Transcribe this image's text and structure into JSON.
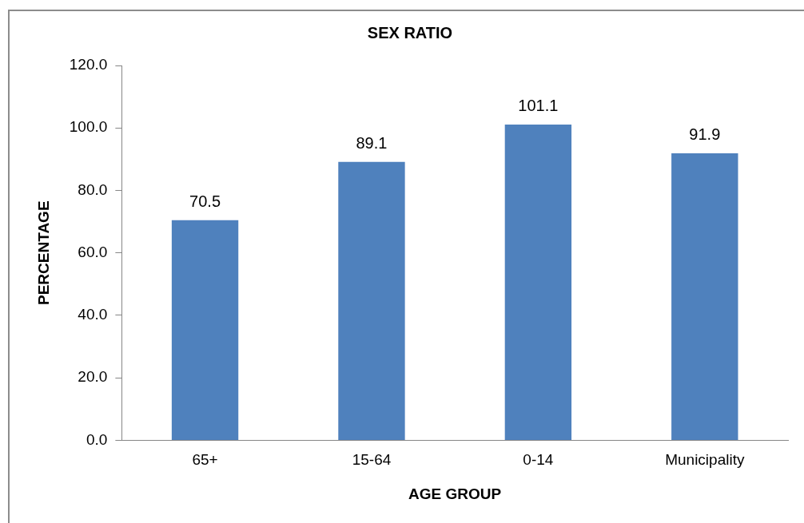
{
  "chart_data": {
    "type": "bar",
    "title": "SEX RATIO",
    "xlabel": "AGE GROUP",
    "ylabel": "PERCENTAGE",
    "categories": [
      "65+",
      "15-64",
      "0-14",
      "Municipality"
    ],
    "values": [
      70.5,
      89.1,
      101.1,
      91.9
    ],
    "color": "#4f81bd",
    "ylim": [
      0,
      120
    ],
    "yticks": [
      {
        "value": 0,
        "label": "0.0"
      },
      {
        "value": 20,
        "label": "20.0"
      },
      {
        "value": 40,
        "label": "40.0"
      },
      {
        "value": 60,
        "label": "60.0"
      },
      {
        "value": 80,
        "label": "80.0"
      },
      {
        "value": 100,
        "label": "100.0"
      },
      {
        "value": 120,
        "label": "120.0"
      }
    ],
    "grid": false,
    "legend": false,
    "data_labels": true
  }
}
